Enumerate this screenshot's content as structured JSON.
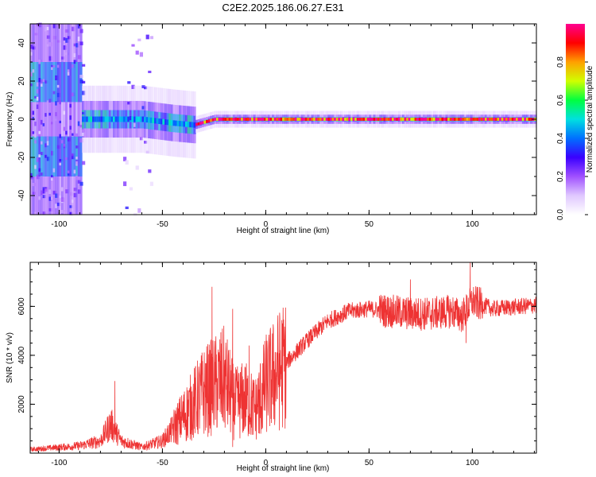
{
  "title": "C2E2.2025.186.06.27.E31",
  "chart_data": [
    {
      "type": "heatmap",
      "title": "C2E2.2025.186.06.27.E31",
      "xlabel": "Height of straight line (km)",
      "ylabel": "Frequency (Hz)",
      "xlim": [
        -114,
        131
      ],
      "ylim": [
        -50,
        50
      ],
      "x_ticks": [
        -100,
        -50,
        0,
        50,
        100
      ],
      "y_ticks": [
        -40,
        -20,
        0,
        20,
        40
      ],
      "colorbar": {
        "label": "Normalized spectral amplitude",
        "range": [
          0,
          1
        ],
        "ticks": [
          0.0,
          0.2,
          0.4,
          0.6,
          0.8
        ],
        "colormap": [
          "#ffffff",
          "#e0c8ff",
          "#a050ff",
          "#3a00ff",
          "#0070ff",
          "#00e0e0",
          "#00ff40",
          "#d0ff00",
          "#ffa000",
          "#ff0000",
          "#ff0090"
        ]
      },
      "regions": [
        {
          "x_range": [
            -114,
            -90
          ],
          "description_level": 0.15,
          "freq_spread": 50
        },
        {
          "x_range": [
            -90,
            -35
          ],
          "description_level": 0.45,
          "freq_spread": 8
        },
        {
          "x_range": [
            -35,
            131
          ],
          "description_level": 0.95,
          "freq_spread": 2
        }
      ],
      "ridge_center_hz": [
        {
          "x": -114,
          "f": 0
        },
        {
          "x": -60,
          "f": 0
        },
        {
          "x": -45,
          "f": -2
        },
        {
          "x": -35,
          "f": -3
        },
        {
          "x": -25,
          "f": 0
        },
        {
          "x": 131,
          "f": 0
        }
      ]
    },
    {
      "type": "line",
      "xlabel": "Height of straight line (km)",
      "ylabel": "SNR (10 * v/v)",
      "xlim": [
        -114,
        131
      ],
      "ylim": [
        0,
        7800
      ],
      "x_ticks": [
        -100,
        -50,
        0,
        50,
        100
      ],
      "y_ticks": [
        2000,
        4000,
        6000
      ],
      "color": "#ee3333",
      "envelope": [
        {
          "x": -114,
          "y": 150
        },
        {
          "x": -90,
          "y": 300
        },
        {
          "x": -80,
          "y": 500
        },
        {
          "x": -75,
          "y": 1200
        },
        {
          "x": -70,
          "y": 500
        },
        {
          "x": -60,
          "y": 250
        },
        {
          "x": -50,
          "y": 500
        },
        {
          "x": -40,
          "y": 1500
        },
        {
          "x": -30,
          "y": 2500
        },
        {
          "x": -20,
          "y": 3000
        },
        {
          "x": -15,
          "y": 2000
        },
        {
          "x": -10,
          "y": 2200
        },
        {
          "x": -5,
          "y": 1800
        },
        {
          "x": 0,
          "y": 2800
        },
        {
          "x": 10,
          "y": 3700
        },
        {
          "x": 20,
          "y": 4600
        },
        {
          "x": 30,
          "y": 5400
        },
        {
          "x": 40,
          "y": 5800
        },
        {
          "x": 50,
          "y": 5900
        },
        {
          "x": 60,
          "y": 5800
        },
        {
          "x": 70,
          "y": 5700
        },
        {
          "x": 80,
          "y": 5700
        },
        {
          "x": 90,
          "y": 5800
        },
        {
          "x": 95,
          "y": 5600
        },
        {
          "x": 100,
          "y": 6200
        },
        {
          "x": 110,
          "y": 5900
        },
        {
          "x": 131,
          "y": 6050
        }
      ],
      "peaks": [
        {
          "x": -73,
          "y": 2950
        },
        {
          "x": -26,
          "y": 6800
        },
        {
          "x": -16,
          "y": 5900
        },
        {
          "x": -8,
          "y": 4400
        },
        {
          "x": 70,
          "y": 7100
        },
        {
          "x": 99,
          "y": 7800
        }
      ],
      "dips": [
        {
          "x": -16,
          "y": 250
        },
        {
          "x": -3,
          "y": 800
        },
        {
          "x": 97,
          "y": 4500
        }
      ]
    }
  ]
}
